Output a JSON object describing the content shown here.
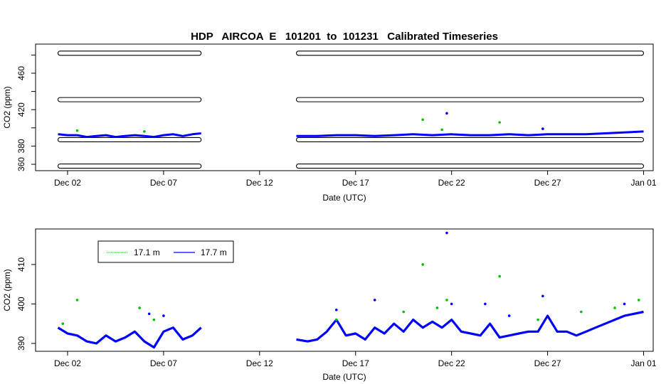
{
  "title": "HDP   AIRCOA  E   101201  to  101231   Calibrated Timeseries",
  "colors": {
    "green": "#00c000",
    "blue": "#0000ff",
    "black": "#000000"
  },
  "chart_data": [
    {
      "type": "scatter",
      "title": "HDP   AIRCOA  E   101201  to  101231   Calibrated Timeseries",
      "xlabel": "Date (UTC)",
      "ylabel": "CO2 (ppm)",
      "xlim": [
        "2010-11-30T08:00",
        "2011-01-01T12:00"
      ],
      "ylim": [
        353,
        492
      ],
      "x_ticks": [
        "Dec 02",
        "Dec 07",
        "Dec 12",
        "Dec 17",
        "Dec 22",
        "Dec 27",
        "Jan 01"
      ],
      "x_tick_dates": [
        "2010-12-02",
        "2010-12-07",
        "2010-12-12",
        "2010-12-17",
        "2010-12-22",
        "2010-12-27",
        "2011-01-01"
      ],
      "y_ticks": [
        360,
        380,
        400,
        420,
        440,
        460,
        480
      ],
      "y_tick_labels": [
        "360",
        "380",
        "420",
        "460"
      ],
      "grid": false,
      "reference_bands": {
        "name": "calibration standards (black circles)",
        "levels": [
          358,
          387,
          431,
          482
        ],
        "periods": [
          [
            "2010-12-01T12:00",
            "2010-12-08T23:00"
          ],
          [
            "2010-12-13T22:00",
            "2011-01-01T00:00"
          ]
        ]
      },
      "series": [
        {
          "name": "17.7 m",
          "marker": "line",
          "x": [
            "2010-12-01T12:00",
            "2010-12-02T00:00",
            "2010-12-02T12:00",
            "2010-12-03T00:00",
            "2010-12-03T12:00",
            "2010-12-04T00:00",
            "2010-12-04T12:00",
            "2010-12-05T00:00",
            "2010-12-05T12:00",
            "2010-12-06T00:00",
            "2010-12-06T12:00",
            "2010-12-07T00:00",
            "2010-12-07T12:00",
            "2010-12-08T00:00",
            "2010-12-08T12:00",
            "2010-12-08T23:00"
          ],
          "y": [
            393,
            392,
            392,
            390,
            391,
            392,
            390,
            391,
            392,
            391,
            390,
            392,
            393,
            391,
            393,
            394
          ]
        },
        {
          "name": "17.7 m",
          "marker": "line",
          "x": [
            "2010-12-13T22:00",
            "2010-12-15T00:00",
            "2010-12-16T00:00",
            "2010-12-17T00:00",
            "2010-12-18T00:00",
            "2010-12-19T00:00",
            "2010-12-20T00:00",
            "2010-12-21T00:00",
            "2010-12-22T00:00",
            "2010-12-23T00:00",
            "2010-12-24T00:00",
            "2010-12-25T00:00",
            "2010-12-26T00:00",
            "2010-12-27T00:00",
            "2010-12-28T00:00",
            "2010-12-29T00:00",
            "2010-12-30T00:00",
            "2011-01-01T00:00"
          ],
          "y": [
            391,
            391,
            392,
            392,
            391,
            392,
            393,
            392,
            393,
            392,
            392,
            393,
            392,
            393,
            393,
            393,
            394,
            396
          ]
        },
        {
          "name": "17.1 m",
          "marker": "point",
          "x": [
            "2010-12-02T12:00",
            "2010-12-06T00:00",
            "2010-12-20T12:00",
            "2010-12-21T12:00",
            "2010-12-24T12:00"
          ],
          "y": [
            397,
            396,
            409,
            398,
            406
          ]
        },
        {
          "name": "17.7 m",
          "marker": "point",
          "x": [
            "2010-12-21T18:00",
            "2010-12-26T18:00"
          ],
          "y": [
            416,
            399
          ]
        }
      ]
    },
    {
      "type": "line",
      "xlabel": "Date (UTC)",
      "ylabel": "CO2 (ppm)",
      "xlim": [
        "2010-11-30T08:00",
        "2011-01-01T12:00"
      ],
      "ylim": [
        388,
        419
      ],
      "x_ticks": [
        "Dec 02",
        "Dec 07",
        "Dec 12",
        "Dec 17",
        "Dec 22",
        "Dec 27",
        "Jan 01"
      ],
      "x_tick_dates": [
        "2010-12-02",
        "2010-12-07",
        "2010-12-12",
        "2010-12-17",
        "2010-12-22",
        "2010-12-27",
        "2011-01-01"
      ],
      "y_ticks": [
        390,
        400,
        410
      ],
      "y_tick_labels": [
        "390",
        "400",
        "410"
      ],
      "grid": false,
      "legend": {
        "placement": "top-left",
        "entries": [
          "17.1 m",
          "17.7 m"
        ]
      },
      "series": [
        {
          "name": "17.7 m",
          "marker": "line",
          "x": [
            "2010-12-01T12:00",
            "2010-12-02T00:00",
            "2010-12-02T12:00",
            "2010-12-03T00:00",
            "2010-12-03T12:00",
            "2010-12-04T00:00",
            "2010-12-04T12:00",
            "2010-12-05T00:00",
            "2010-12-05T12:00",
            "2010-12-06T00:00",
            "2010-12-06T12:00",
            "2010-12-07T00:00",
            "2010-12-07T12:00",
            "2010-12-08T00:00",
            "2010-12-08T12:00",
            "2010-12-08T23:00"
          ],
          "y": [
            394,
            392.5,
            392,
            390.5,
            390,
            392,
            390.5,
            391.5,
            393,
            390.5,
            389,
            393,
            394,
            391,
            392,
            394
          ]
        },
        {
          "name": "17.7 m",
          "marker": "line",
          "x": [
            "2010-12-13T22:00",
            "2010-12-14T12:00",
            "2010-12-15T00:00",
            "2010-12-15T12:00",
            "2010-12-16T00:00",
            "2010-12-16T12:00",
            "2010-12-17T00:00",
            "2010-12-17T12:00",
            "2010-12-18T00:00",
            "2010-12-18T12:00",
            "2010-12-19T00:00",
            "2010-12-19T12:00",
            "2010-12-20T00:00",
            "2010-12-20T12:00",
            "2010-12-21T00:00",
            "2010-12-21T12:00",
            "2010-12-22T00:00",
            "2010-12-22T12:00",
            "2010-12-23T00:00",
            "2010-12-23T12:00",
            "2010-12-24T00:00",
            "2010-12-24T12:00",
            "2010-12-25T00:00",
            "2010-12-25T12:00",
            "2010-12-26T00:00",
            "2010-12-26T12:00",
            "2010-12-27T00:00",
            "2010-12-27T12:00",
            "2010-12-28T00:00",
            "2010-12-28T12:00",
            "2010-12-29T00:00",
            "2010-12-29T12:00",
            "2010-12-30T00:00",
            "2010-12-30T12:00",
            "2010-12-31T00:00",
            "2010-12-31T12:00",
            "2011-01-01T00:00"
          ],
          "y": [
            391,
            390.5,
            391,
            393,
            396,
            392,
            392.5,
            391,
            394,
            392.5,
            395,
            393,
            396,
            394,
            395.5,
            394,
            396,
            393,
            392.5,
            392,
            395,
            391.5,
            392,
            392.5,
            393,
            393,
            397,
            393,
            393,
            392,
            393,
            394,
            395,
            396,
            397,
            397.5,
            398
          ]
        },
        {
          "name": "17.1 m",
          "marker": "point",
          "x": [
            "2010-12-01T18:00",
            "2010-12-02T12:00",
            "2010-12-05T18:00",
            "2010-12-06T12:00",
            "2010-12-16T00:00",
            "2010-12-19T12:00",
            "2010-12-20T12:00",
            "2010-12-21T06:00",
            "2010-12-21T18:00",
            "2010-12-24T12:00",
            "2010-12-26T12:00",
            "2010-12-28T18:00",
            "2010-12-30T12:00",
            "2010-12-31T18:00"
          ],
          "y": [
            395,
            401,
            399,
            396,
            396,
            398,
            410,
            399,
            401,
            407,
            396,
            398,
            399,
            401
          ]
        },
        {
          "name": "17.7 m",
          "marker": "point",
          "x": [
            "2010-12-06T06:00",
            "2010-12-07T00:00",
            "2010-12-16T00:00",
            "2010-12-18T00:00",
            "2010-12-21T18:00",
            "2010-12-22T00:00",
            "2010-12-23T18:00",
            "2010-12-25T00:00",
            "2010-12-26T18:00",
            "2010-12-31T00:00"
          ],
          "y": [
            397.5,
            397,
            398.5,
            401,
            418,
            400,
            400,
            397,
            402,
            400
          ]
        }
      ]
    }
  ]
}
